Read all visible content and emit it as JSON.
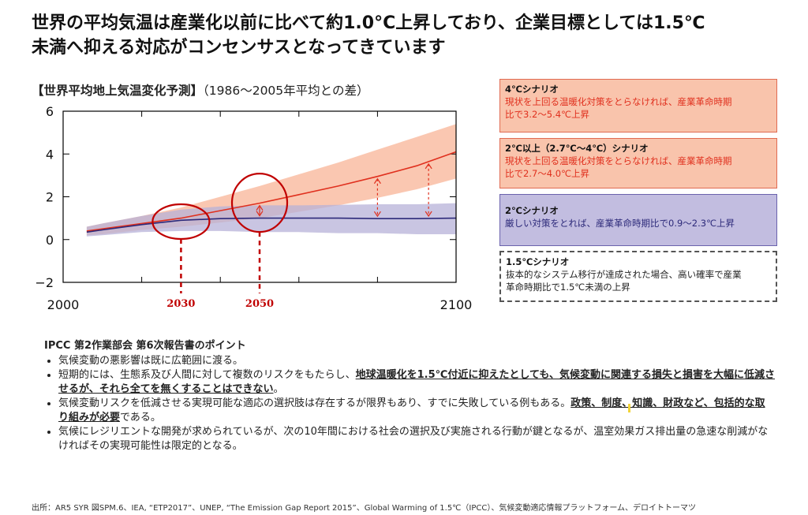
{
  "headline": {
    "line1": "世界の平均気温は産業化以前に比べて約1.0°C上昇しており、企業目標としては1.5℃",
    "line2": "未満へ抑える対応がコンセンサスとなってきています"
  },
  "chart_title": {
    "bold": "【世界平均地上気温変化予測】",
    "normal": "（1986～2005年平均との差）"
  },
  "chart_data": {
    "type": "area",
    "x_range": [
      2000,
      2100
    ],
    "y_range": [
      -2,
      6
    ],
    "x_ticks": [
      "2000",
      "2100"
    ],
    "y_ticks": [
      "6",
      "4",
      "2",
      "0",
      "−2"
    ],
    "series": [
      {
        "color": "#e0301e",
        "band_color": "#f9c1a8",
        "x": [
          2006,
          2010,
          2020,
          2030,
          2040,
          2050,
          2060,
          2070,
          2080,
          2090,
          2100
        ],
        "mean": [
          0.4,
          0.5,
          0.75,
          1.0,
          1.35,
          1.7,
          2.1,
          2.5,
          2.95,
          3.45,
          4.1
        ],
        "upper": [
          0.6,
          0.75,
          1.1,
          1.5,
          2.0,
          2.5,
          3.05,
          3.6,
          4.2,
          4.8,
          5.4
        ],
        "lower": [
          0.2,
          0.25,
          0.45,
          0.6,
          0.8,
          1.0,
          1.3,
          1.6,
          1.95,
          2.35,
          2.85
        ]
      },
      {
        "color": "#2d2a7a",
        "band_color": "#b7b2d8",
        "x": [
          2006,
          2010,
          2020,
          2030,
          2040,
          2050,
          2060,
          2070,
          2080,
          2090,
          2100
        ],
        "mean": [
          0.35,
          0.45,
          0.7,
          0.9,
          0.98,
          1.0,
          1.0,
          1.0,
          0.98,
          0.98,
          1.0
        ],
        "upper": [
          0.6,
          0.75,
          1.1,
          1.4,
          1.55,
          1.6,
          1.6,
          1.62,
          1.65,
          1.65,
          1.7
        ],
        "lower": [
          0.15,
          0.2,
          0.35,
          0.4,
          0.4,
          0.35,
          0.35,
          0.3,
          0.3,
          0.25,
          0.25
        ]
      }
    ],
    "markers": [
      {
        "label": "2030",
        "year": 2030
      },
      {
        "label": "2050",
        "year": 2050
      }
    ]
  },
  "scenarios": [
    {
      "title": "4℃シナリオ",
      "desc": "現状を上回る温暖化対策をとらなければ、産業革命時期\n比で3.2～5.4℃上昇"
    },
    {
      "title": "2℃以上（2.7℃～4℃）シナリオ",
      "desc": "現状を上回る温暖化対策をとらなければ、産業革命時期\n比で2.7～4.0℃上昇"
    },
    {
      "title": "2℃シナリオ",
      "desc": "厳しい対策をとれば、産業革命時期比で0.9～2.3℃上昇"
    },
    {
      "title": "1.5℃シナリオ",
      "desc": "抜本的なシステム移行が達成された場合、高い確率で産業\n革命時期比で1.5℃未満の上昇"
    }
  ],
  "points": {
    "title": "IPCC 第2作業部会 第6次報告書のポイント",
    "items": [
      {
        "parts": [
          {
            "t": "気候変動の悪影響は既に広範囲に渡る。",
            "hl": false
          }
        ]
      },
      {
        "parts": [
          {
            "t": "短期的には、生態系及び人間に対して複数のリスクをもたらし、",
            "hl": false
          },
          {
            "t": "地球温暖化を1.5℃付近に抑えたとしても、気候変動に関連する損失と損害を大幅に低減させるが、それら全てを無くすることはできない",
            "hl": true
          },
          {
            "t": "。",
            "hl": false
          }
        ]
      },
      {
        "parts": [
          {
            "t": "気候変動リスクを低減させる実現可能な適応の選択肢は存在するが限界もあり、すでに失敗している例もある。",
            "hl": false
          },
          {
            "t": "政策、制度、知識、財政など、包括的な取り組みが必要",
            "hl": true
          },
          {
            "t": "である。",
            "hl": false
          }
        ]
      },
      {
        "parts": [
          {
            "t": "気候にレジリエントな開発が求められているが、次の10年間における社会の選択及び実施される行動が鍵となるが、温室効果ガス排出量の急速な削減がなければその実現可能性は限定的となる。",
            "hl": false
          }
        ]
      }
    ]
  },
  "source": "出所：AR5 SYR  図SPM.6、IEA, “ETP2017”、UNEP, “The Emission Gap Report 2015”、Global Warming of 1.5℃（IPCC）、気候変動適応情報プラットフォーム、デロイトトーマツ"
}
